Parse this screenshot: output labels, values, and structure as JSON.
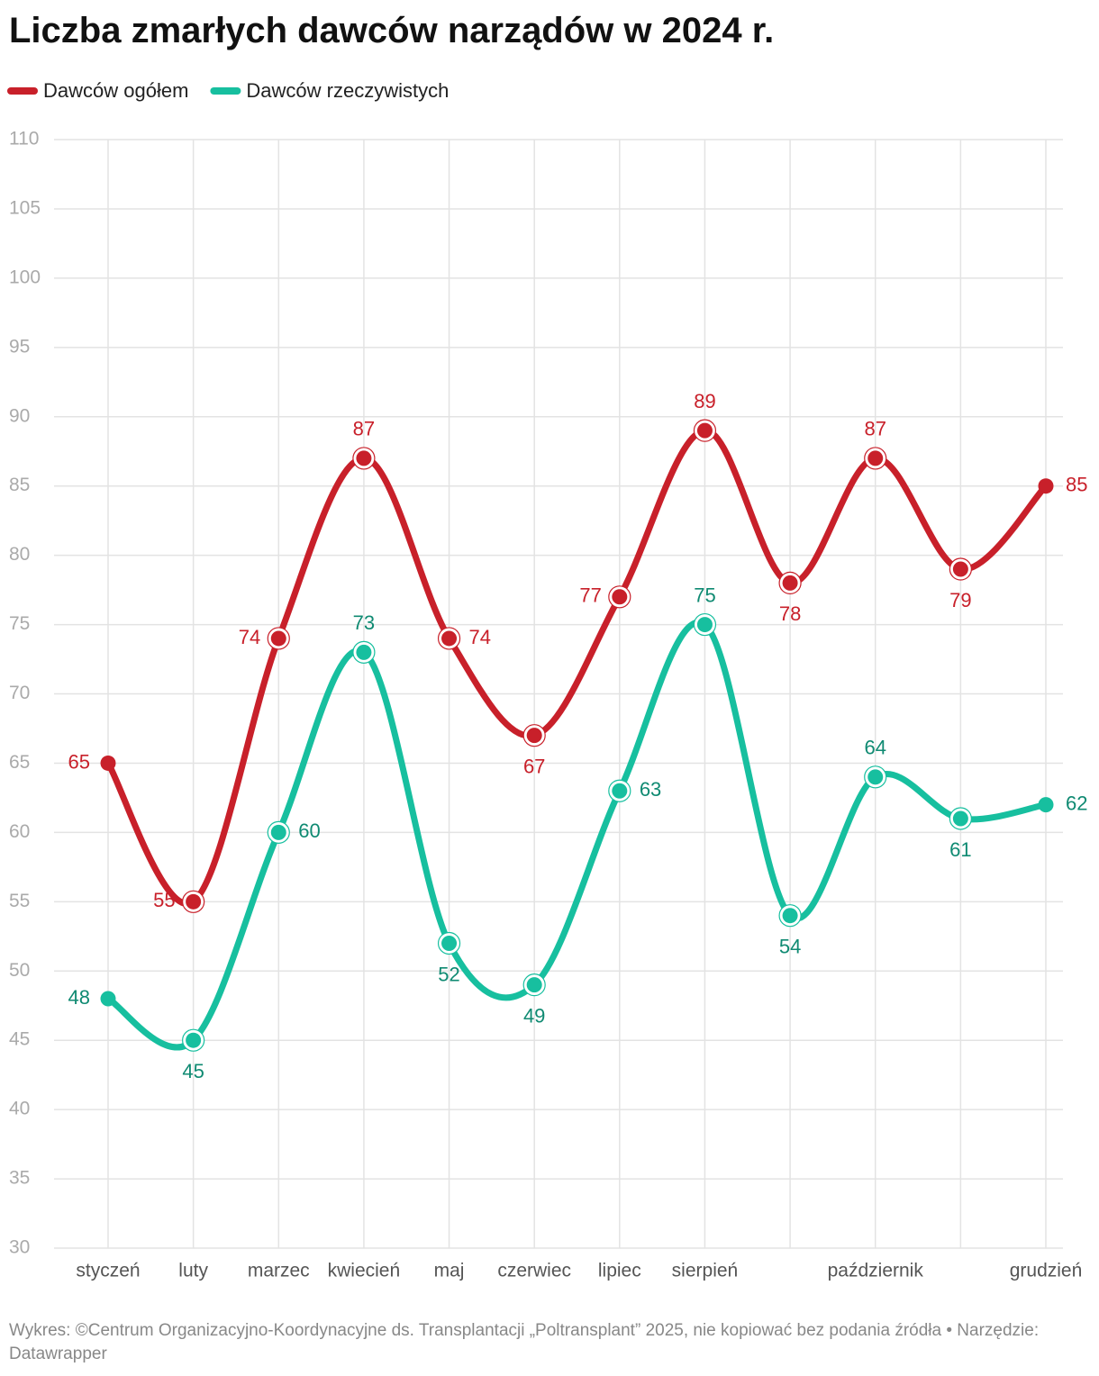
{
  "chart_data": {
    "type": "line",
    "title": "Liczba zmarłych dawców narządów w 2024 r.",
    "source": "Wykres: ©Centrum Organizacyjno-Koordynacyjne ds. Transplantacji „Poltransplant” 2025, nie kopiować bez podania źródła • Narzędzie: Datawrapper",
    "categories": [
      "styczeń",
      "luty",
      "marzec",
      "kwiecień",
      "maj",
      "czerwiec",
      "lipiec",
      "sierpień",
      null,
      "październik",
      null,
      "grudzień"
    ],
    "series": [
      {
        "name": "Dawców ogółem",
        "color": "#c8202a",
        "label_color": "#c8202a",
        "values": [
          65,
          55,
          74,
          87,
          74,
          67,
          77,
          89,
          78,
          87,
          79,
          85
        ]
      },
      {
        "name": "Dawców rzeczywistych",
        "color": "#17bf9f",
        "label_color": "#0f8a72",
        "values": [
          48,
          45,
          60,
          73,
          52,
          49,
          63,
          75,
          54,
          64,
          61,
          62
        ]
      }
    ],
    "ylim": [
      30,
      110
    ],
    "yticks": [
      30,
      35,
      40,
      45,
      50,
      55,
      60,
      65,
      70,
      75,
      80,
      85,
      90,
      95,
      100,
      105,
      110
    ],
    "grid": true,
    "legend": "top-left"
  }
}
